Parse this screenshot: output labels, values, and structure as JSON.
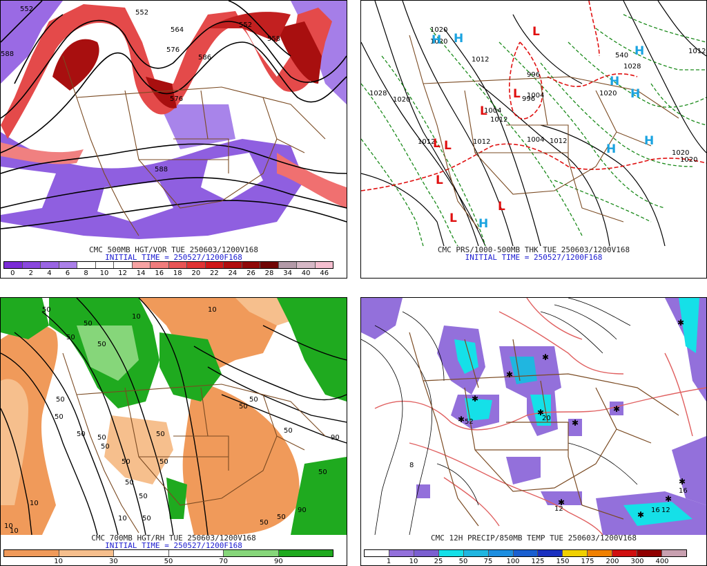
{
  "panels": {
    "vort": {
      "title": "CMC 500MB HGT/VOR TUE 250603/1200V168",
      "subtitle": "INITIAL TIME = 250527/1200F168",
      "contour_labels": [
        "552",
        "552",
        "564",
        "558",
        "552",
        "576",
        "576",
        "588",
        "588",
        "586"
      ],
      "colorbar": {
        "labels": [
          "0",
          "2",
          "4",
          "6",
          "8",
          "10",
          "12",
          "14",
          "16",
          "18",
          "20",
          "22",
          "24",
          "26",
          "28",
          "34",
          "40",
          "46"
        ],
        "colors": [
          "#7a2bd6",
          "#8a48de",
          "#9a64e4",
          "#ab80ea",
          "#ffffff",
          "#ffffff",
          "#ffffff",
          "#f7a3a3",
          "#f07c7c",
          "#e85555",
          "#e03434",
          "#d01818",
          "#b20d0d",
          "#900808",
          "#700404",
          "#b39aa8",
          "#d6b8c6",
          "#f5bfd0"
        ]
      }
    },
    "pres": {
      "title": "CMC PRS/1000-500MB THK TUE 250603/1200V168",
      "subtitle": "INITIAL TIME = 250527/1200F168",
      "contour_labels": [
        "1020",
        "1020",
        "1028",
        "1020",
        "1012",
        "1012",
        "1004",
        "1012",
        "1012",
        "1004",
        "1004",
        "1012",
        "1020",
        "1020",
        "1020",
        "1012",
        "1028",
        "996",
        "996",
        "540"
      ],
      "pressure_centers": [
        {
          "kind": "H",
          "color": "#1aa3e0"
        },
        {
          "kind": "H",
          "color": "#1aa3e0"
        },
        {
          "kind": "L",
          "color": "#e01010"
        },
        {
          "kind": "L",
          "color": "#e01010"
        },
        {
          "kind": "L",
          "color": "#e01010"
        },
        {
          "kind": "L",
          "color": "#e01010"
        },
        {
          "kind": "L",
          "color": "#e01010"
        },
        {
          "kind": "L",
          "color": "#e01010"
        },
        {
          "kind": "L",
          "color": "#e01010"
        },
        {
          "kind": "L",
          "color": "#e01010"
        },
        {
          "kind": "H",
          "color": "#1aa3e0"
        },
        {
          "kind": "H",
          "color": "#1aa3e0"
        },
        {
          "kind": "H",
          "color": "#1aa3e0"
        },
        {
          "kind": "H",
          "color": "#1aa3e0"
        },
        {
          "kind": "H",
          "color": "#1aa3e0"
        },
        {
          "kind": "H",
          "color": "#1aa3e0"
        }
      ]
    },
    "rh": {
      "title": "CMC 700MB HGT/RH TUE 250603/1200V168",
      "subtitle": "INITIAL TIME = 250527/1200F168",
      "contour_labels": [
        "50",
        "50",
        "10",
        "50",
        "50",
        "10",
        "50",
        "50",
        "50",
        "50",
        "50",
        "50",
        "50",
        "50",
        "50",
        "50",
        "50",
        "50",
        "50",
        "10",
        "10",
        "10",
        "10",
        "50",
        "90",
        "90",
        "50",
        "50",
        "50"
      ],
      "colorbar": {
        "labels": [
          "10",
          "30",
          "50",
          "70",
          "90"
        ],
        "colors": [
          "#f09a5a",
          "#f6bf8d",
          "#ffffff",
          "#ffffff",
          "#86d67a",
          "#1faa1f"
        ]
      }
    },
    "precip": {
      "title": "CMC 12H PRECIP/850MB TEMP TUE 250603/1200V168",
      "subtitle": "",
      "contour_labels": [
        "52",
        "20",
        "12",
        "12",
        "16",
        "8",
        "16"
      ],
      "colorbar": {
        "labels": [
          "1",
          "10",
          "25",
          "50",
          "75",
          "100",
          "125",
          "150",
          "175",
          "200",
          "300",
          "400"
        ],
        "colors": [
          "#ffffff",
          "#9370db",
          "#7b5fd0",
          "#15e0e8",
          "#20b6e0",
          "#1c8ee0",
          "#1a5fd0",
          "#1a30c0",
          "#f0d000",
          "#f08000",
          "#d01010",
          "#900000",
          "#c8a0b0"
        ]
      }
    }
  }
}
